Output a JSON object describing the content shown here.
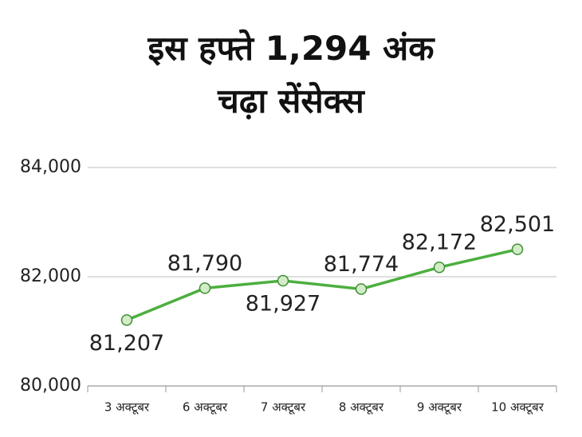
{
  "chart_data": {
    "type": "line",
    "title": "इस हफ्ते 1,294 अंक\nचढ़ा सेंसेक्स",
    "categories": [
      "3 अक्टूबर",
      "6 अक्टूबर",
      "7 अक्टूबर",
      "8 अक्टूबर",
      "9 अक्टूबर",
      "10 अक्टूबर"
    ],
    "series": [
      {
        "color": "#4caf3f",
        "values": [
          81207,
          81790,
          81927,
          81774,
          82172,
          82501
        ],
        "value_labels": [
          "81,207",
          "81,790",
          "81,927",
          "81,774",
          "82,172",
          "82,501"
        ]
      }
    ],
    "ylim": [
      80000,
      84000
    ],
    "yticks": [
      {
        "value": 80000,
        "label": "80,000"
      },
      {
        "value": 82000,
        "label": "82,000"
      },
      {
        "value": 84000,
        "label": "84,000"
      }
    ],
    "grid": true
  }
}
